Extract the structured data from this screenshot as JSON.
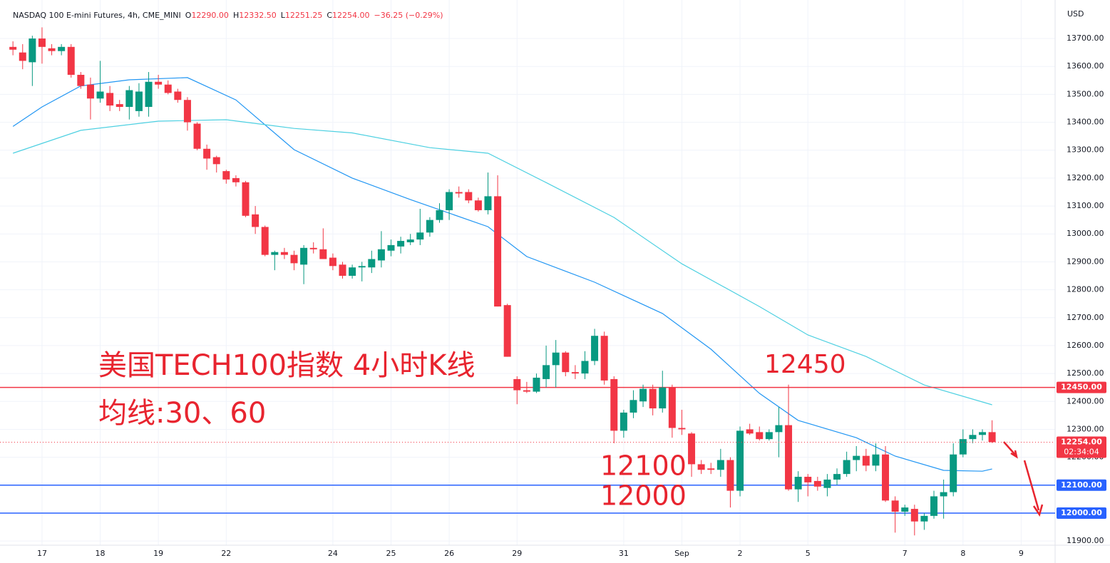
{
  "chart_data": {
    "type": "candlestick",
    "header": {
      "symbol": "NASDAQ 100 E-mini Futures, 4h, CME_MINI",
      "ohlc": [
        {
          "key": "O",
          "value": "12290.00"
        },
        {
          "key": "H",
          "value": "12332.50"
        },
        {
          "key": "L",
          "value": "12251.25"
        },
        {
          "key": "C",
          "value": "12254.00"
        }
      ],
      "change": "−36.25 (−0.29%)"
    },
    "currency": "USD",
    "up_color": "#089981",
    "down_color": "#f23645",
    "open": [
      13670,
      13650,
      13615,
      13700,
      13665,
      13655,
      13670,
      13570,
      13535,
      13485,
      13505,
      13465,
      13455,
      13440,
      13455,
      13545,
      13535,
      13510,
      13480,
      13395,
      13305,
      13275,
      13225,
      13200,
      13185,
      13070,
      13025,
      12925,
      12935,
      12925,
      12890,
      12950,
      12945,
      12915,
      12890,
      12850,
      12880,
      12880,
      12905,
      12940,
      12955,
      12970,
      12980,
      13005,
      13050,
      13085,
      13150,
      13150,
      13120,
      13085,
      13135,
      12745,
      12480,
      12440,
      12435,
      12480,
      12530,
      12575,
      12505,
      12500,
      12545,
      12635,
      12480,
      12295,
      12360,
      12400,
      12445,
      12375,
      12450,
      12305,
      12285,
      12175,
      12160,
      12155,
      12190,
      12080,
      12300,
      12290,
      12265,
      12290,
      12315,
      12085,
      12130,
      12115,
      12090,
      12120,
      12140,
      12190,
      12205,
      12170,
      12210,
      12045,
      12005,
      12015,
      11970,
      11990,
      12060,
      12075,
      12210,
      12265,
      12280,
      12290
    ],
    "high": [
      13690,
      13680,
      13710,
      13740,
      13680,
      13680,
      13680,
      13580,
      13560,
      13620,
      13530,
      13480,
      13530,
      13540,
      13580,
      13570,
      13550,
      13520,
      13490,
      13400,
      13320,
      13280,
      13230,
      13210,
      13190,
      13100,
      13030,
      12940,
      12950,
      12940,
      12960,
      12970,
      13020,
      12930,
      12900,
      12890,
      12900,
      12940,
      13010,
      12980,
      12990,
      13000,
      13090,
      13060,
      13110,
      13160,
      13170,
      13160,
      13130,
      13220,
      13210,
      12750,
      12490,
      12470,
      12500,
      12600,
      12620,
      12580,
      12530,
      12580,
      12660,
      12650,
      12490,
      12370,
      12440,
      12460,
      12460,
      12510,
      12460,
      12370,
      12290,
      12190,
      12180,
      12230,
      12200,
      12310,
      12320,
      12310,
      12300,
      12380,
      12460,
      12150,
      12140,
      12130,
      12140,
      12160,
      12220,
      12240,
      12230,
      12250,
      12240,
      12060,
      12030,
      12030,
      12000,
      12080,
      12120,
      12250,
      12300,
      12300,
      12300,
      12332.5
    ],
    "low": [
      13640,
      13590,
      13530,
      13610,
      13640,
      13640,
      13560,
      13520,
      13410,
      13470,
      13440,
      13440,
      13410,
      13420,
      13420,
      13520,
      13500,
      13470,
      13370,
      13300,
      13230,
      13220,
      13180,
      13170,
      13060,
      13000,
      12920,
      12870,
      12910,
      12870,
      12820,
      12930,
      12920,
      12870,
      12840,
      12840,
      12830,
      12860,
      12880,
      12920,
      12930,
      12960,
      12960,
      12990,
      13040,
      13050,
      13130,
      13110,
      13080,
      13070,
      12740,
      12560,
      12390,
      12430,
      12430,
      12450,
      12450,
      12490,
      12480,
      12480,
      12530,
      12460,
      12250,
      12270,
      12340,
      12380,
      12350,
      12360,
      12270,
      12280,
      12130,
      12140,
      12140,
      12130,
      12020,
      12060,
      12280,
      12260,
      12260,
      12200,
      12080,
      12040,
      12060,
      12080,
      12060,
      12100,
      12130,
      12150,
      12150,
      12150,
      12040,
      11930,
      11990,
      11920,
      11940,
      11980,
      11980,
      12060,
      12200,
      12250,
      12260,
      12251.25
    ],
    "close": [
      13660,
      13620,
      13700,
      13670,
      13655,
      13670,
      13570,
      13530,
      13485,
      13510,
      13460,
      13455,
      13515,
      13510,
      13545,
      13535,
      13505,
      13480,
      13400,
      13305,
      13270,
      13250,
      13195,
      13185,
      13065,
      13025,
      12925,
      12935,
      12925,
      12895,
      12950,
      12945,
      12910,
      12885,
      12850,
      12880,
      12885,
      12910,
      12945,
      12960,
      12975,
      12980,
      13005,
      13050,
      13085,
      13150,
      13145,
      13120,
      13085,
      13135,
      12740,
      12560,
      12440,
      12435,
      12485,
      12530,
      12575,
      12505,
      12500,
      12545,
      12635,
      12475,
      12295,
      12360,
      12405,
      12445,
      12375,
      12450,
      12305,
      12300,
      12175,
      12155,
      12155,
      12190,
      12080,
      12295,
      12285,
      12265,
      12290,
      12315,
      12085,
      12130,
      12110,
      12095,
      12120,
      12140,
      12190,
      12205,
      12170,
      12210,
      12045,
      12005,
      12020,
      11970,
      11990,
      12060,
      12075,
      12210,
      12265,
      12280,
      12290,
      12254
    ],
    "series": [
      {
        "color": "#2196f3",
        "x": [
          0,
          3,
          7,
          12,
          18,
          23,
          29,
          35,
          41,
          49,
          53,
          60,
          67,
          72,
          77,
          81,
          87,
          91,
          96,
          100,
          101
        ],
        "values": [
          13385,
          13455,
          13530,
          13552,
          13560,
          13480,
          13302,
          13200,
          13123,
          13026,
          12919,
          12827,
          12715,
          12587,
          12429,
          12332,
          12270,
          12204,
          12153,
          12150,
          12158
        ]
      },
      {
        "color": "#4dd0e1",
        "x": [
          0,
          7,
          15,
          22,
          29,
          35,
          43,
          49,
          55,
          62,
          69,
          77,
          82,
          88,
          94,
          101
        ],
        "values": [
          13289,
          13371,
          13404,
          13409,
          13378,
          13362,
          13309,
          13289,
          13184,
          13059,
          12893,
          12740,
          12638,
          12561,
          12459,
          12388
        ]
      }
    ],
    "hlines": [
      {
        "value": 12450,
        "label": "12450.00",
        "color": "#f23645"
      },
      {
        "value": 12100,
        "label": "12100.00",
        "color": "#2962ff"
      },
      {
        "value": 12000,
        "label": "12000.00",
        "color": "#2962ff"
      }
    ],
    "last_price": {
      "value": 12254,
      "label": "12254.00",
      "countdown": "02:34:04"
    },
    "annotations": [
      "美国TECH100指数 4小时K线",
      "均线:30、60",
      "12450",
      "12100",
      "12000"
    ],
    "annotation_color": "#e8242f",
    "ylim": [
      11885,
      13838
    ],
    "yticks": [
      {
        "value": 11900,
        "label": "11900.00"
      },
      {
        "value": 12000,
        "label": "12000.00"
      },
      {
        "value": 12100,
        "label": "12100.00"
      },
      {
        "value": 12200,
        "label": "12200.00"
      },
      {
        "value": 12300,
        "label": "12300.00"
      },
      {
        "value": 12400,
        "label": "12400.00"
      },
      {
        "value": 12500,
        "label": "12500.00"
      },
      {
        "value": 12600,
        "label": "12600.00"
      },
      {
        "value": 12700,
        "label": "12700.00"
      },
      {
        "value": 12800,
        "label": "12800.00"
      },
      {
        "value": 12900,
        "label": "12900.00"
      },
      {
        "value": 13000,
        "label": "13000.00"
      },
      {
        "value": 13100,
        "label": "13100.00"
      },
      {
        "value": 13200,
        "label": "13200.00"
      },
      {
        "value": 13300,
        "label": "13300.00"
      },
      {
        "value": 13400,
        "label": "13400.00"
      },
      {
        "value": 13500,
        "label": "13500.00"
      },
      {
        "value": 13600,
        "label": "13600.00"
      },
      {
        "value": 13700,
        "label": "13700.00"
      }
    ],
    "xlim": [
      -0.6,
      107.5
    ],
    "xticks": [
      {
        "value": 3,
        "label": "17"
      },
      {
        "value": 9,
        "label": "18"
      },
      {
        "value": 15,
        "label": "19"
      },
      {
        "value": 22,
        "label": "22"
      },
      {
        "value": 33,
        "label": "24"
      },
      {
        "value": 39,
        "label": "25"
      },
      {
        "value": 45,
        "label": "26"
      },
      {
        "value": 52,
        "label": "29"
      },
      {
        "value": 63,
        "label": "31"
      },
      {
        "value": 69,
        "label": "Sep"
      },
      {
        "value": 75,
        "label": "2"
      },
      {
        "value": 82,
        "label": "5"
      },
      {
        "value": 92,
        "label": "7"
      },
      {
        "value": 98,
        "label": "8"
      },
      {
        "value": 104,
        "label": "9"
      }
    ],
    "grid": true
  }
}
